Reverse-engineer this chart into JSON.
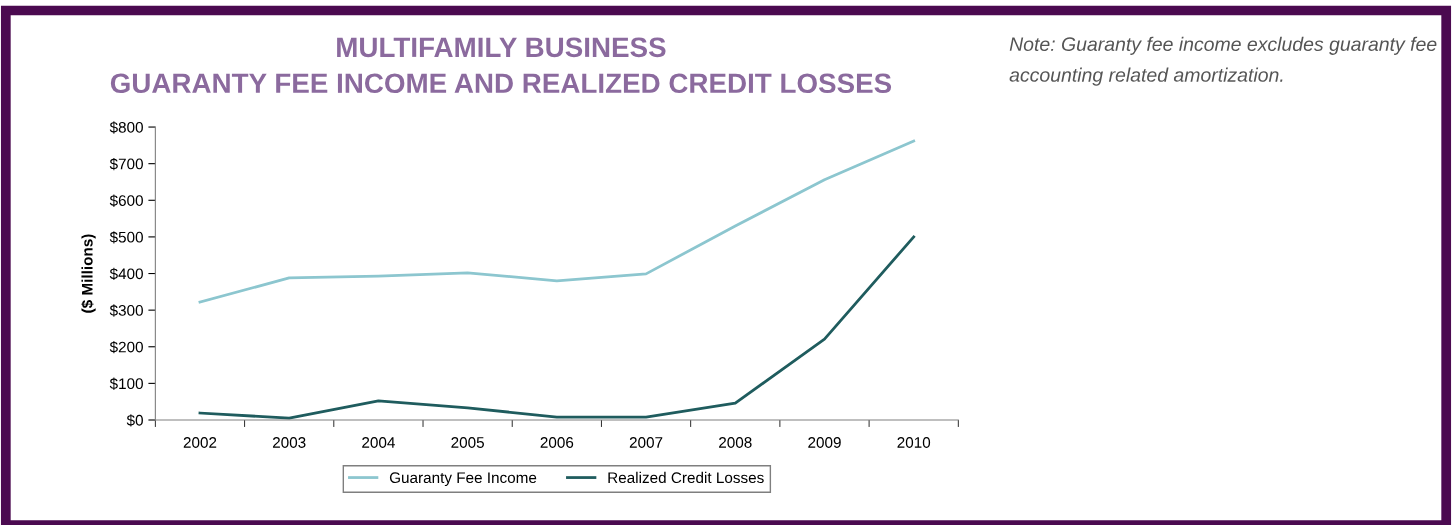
{
  "chart_data": {
    "type": "line",
    "title": "MULTIFAMILY BUSINESS\nGUARANTY FEE INCOME AND REALIZED CREDIT LOSSES",
    "ylabel": "($ Millions)",
    "categories": [
      "2002",
      "2003",
      "2004",
      "2005",
      "2006",
      "2007",
      "2008",
      "2009",
      "2010"
    ],
    "series": [
      {
        "name": "Guaranty Fee Income",
        "color": "#8cc6cf",
        "values": [
          322,
          388,
          393,
          402,
          380,
          399,
          530,
          656,
          762
        ]
      },
      {
        "name": "Realized Credit Losses",
        "color": "#1f5c5e",
        "values": [
          19,
          5,
          52,
          33,
          8,
          8,
          46,
          221,
          500
        ]
      }
    ],
    "ylim": [
      0,
      800
    ],
    "yticks": [
      {
        "value": 0,
        "label": "$0"
      },
      {
        "value": 100,
        "label": "$100"
      },
      {
        "value": 200,
        "label": "$200"
      },
      {
        "value": 300,
        "label": "$300"
      },
      {
        "value": 400,
        "label": "$400"
      },
      {
        "value": 500,
        "label": "$500"
      },
      {
        "value": 600,
        "label": "$600"
      },
      {
        "value": 700,
        "label": "$700"
      },
      {
        "value": 800,
        "label": "$800"
      }
    ],
    "grid": false,
    "legend": "bottom",
    "marker": "none",
    "line_style": "solid",
    "annotations": [
      "Note: Guaranty fee income excludes guaranty fee accounting related amortization."
    ]
  }
}
